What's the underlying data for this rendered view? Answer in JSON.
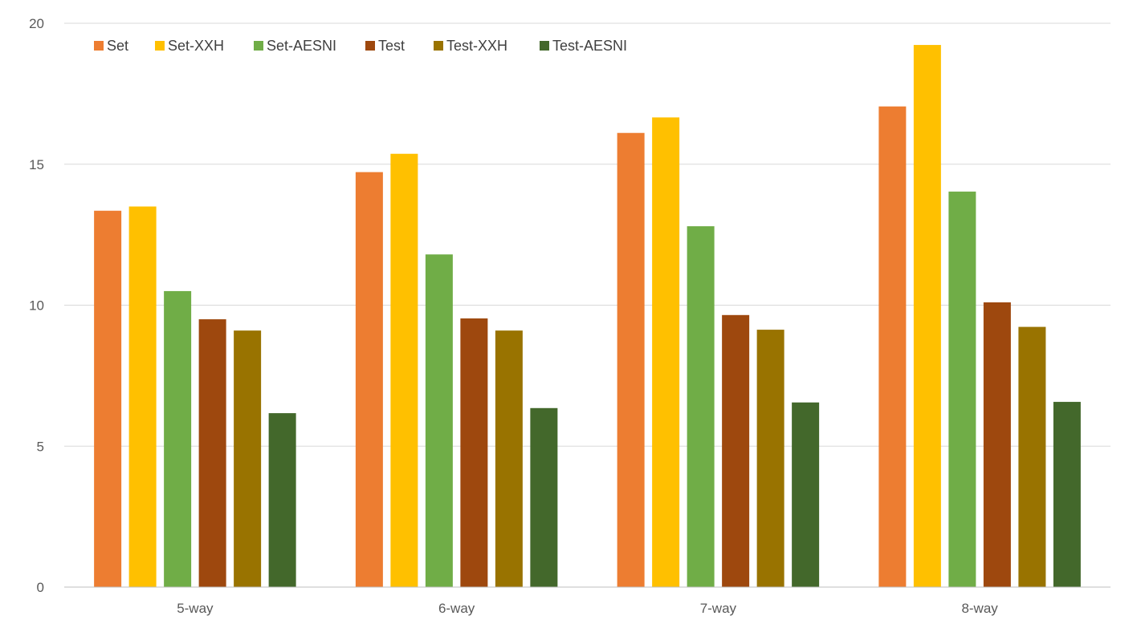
{
  "chart_data": {
    "type": "bar",
    "title": "",
    "xlabel": "",
    "ylabel": "",
    "ylim": [
      0,
      20
    ],
    "yticks": [
      0,
      5,
      10,
      15,
      20
    ],
    "grid": true,
    "legend_position": "top-left",
    "categories": [
      "5-way",
      "6-way",
      "7-way",
      "8-way"
    ],
    "series": [
      {
        "name": "Set",
        "color": "#ED7D31",
        "values": [
          13.35,
          14.72,
          16.11,
          17.05
        ]
      },
      {
        "name": "Set-XXH",
        "color": "#FFC000",
        "values": [
          13.5,
          15.37,
          16.66,
          19.23
        ]
      },
      {
        "name": "Set-AESNI",
        "color": "#70AD47",
        "values": [
          10.5,
          11.8,
          12.8,
          14.03
        ]
      },
      {
        "name": "Test",
        "color": "#9E480E",
        "values": [
          9.5,
          9.53,
          9.65,
          10.1
        ]
      },
      {
        "name": "Test-XXH",
        "color": "#997300",
        "values": [
          9.1,
          9.1,
          9.13,
          9.23
        ]
      },
      {
        "name": "Test-AESNI",
        "color": "#43682B",
        "values": [
          6.17,
          6.35,
          6.55,
          6.57
        ]
      }
    ]
  }
}
